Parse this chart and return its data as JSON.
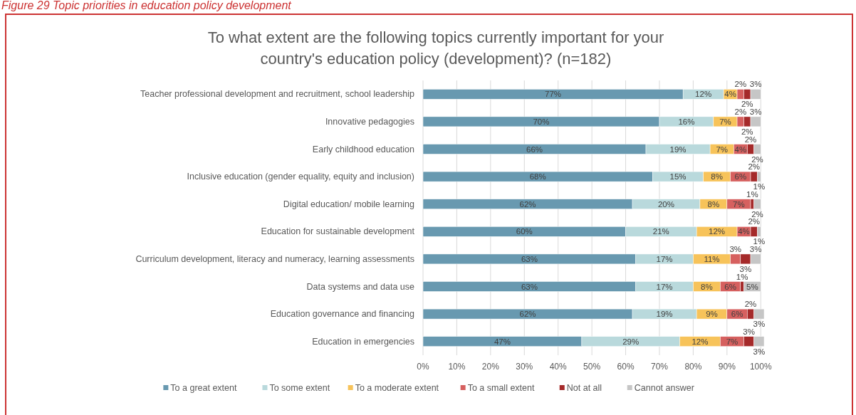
{
  "chart_data": {
    "type": "bar",
    "orientation": "horizontal",
    "stacked": true,
    "title": "To what extent are the following topics currently important for your country's education policy (development)? (n=182)",
    "annotations": [
      "Figure 29 Topic priorities in education policy development"
    ],
    "categories": [
      "Teacher professional development and recruitment, school leadership",
      "Innovative pedagogies",
      "Early childhood education",
      "Inclusive education (gender equality, equity and inclusion)",
      "Digital education/ mobile learning",
      "Education for sustainable development",
      "Curriculum development, literacy and numeracy, learning assessments",
      "Data systems and data use",
      "Education governance and financing",
      "Education in emergencies"
    ],
    "series": [
      {
        "name": "To a great extent",
        "color": "#6899b0",
        "values": [
          77,
          70,
          66,
          68,
          62,
          60,
          63,
          63,
          62,
          47
        ],
        "value_labels": [
          "77%",
          "70%",
          "66%",
          "68%",
          "62%",
          "60%",
          "63%",
          "63%",
          "62%",
          "47%"
        ]
      },
      {
        "name": "To some extent",
        "color": "#b9d9dc",
        "values": [
          12,
          16,
          19,
          15,
          20,
          21,
          17,
          17,
          19,
          29
        ],
        "value_labels": [
          "12%",
          "16%",
          "19%",
          "15%",
          "20%",
          "21%",
          "17%",
          "17%",
          "19%",
          "29%"
        ]
      },
      {
        "name": "To a moderate extent",
        "color": "#f7c35a",
        "values": [
          4,
          7,
          7,
          8,
          8,
          12,
          11,
          8,
          9,
          12
        ],
        "value_labels": [
          "4%",
          "7%",
          "7%",
          "8%",
          "8%",
          "12%",
          "11%",
          "8%",
          "9%",
          "12%"
        ]
      },
      {
        "name": "To a small extent",
        "color": "#d6605f",
        "values": [
          2,
          2,
          4,
          6,
          7,
          4,
          3,
          6,
          6,
          7
        ],
        "value_labels": [
          "2%",
          "2%",
          "4%",
          "6%",
          "7%",
          "4%",
          "3%",
          "6%",
          "6%",
          "7%"
        ]
      },
      {
        "name": "Not at all",
        "color": "#a52a2a",
        "values": [
          2,
          2,
          2,
          2,
          1,
          2,
          3,
          1,
          2,
          3
        ],
        "value_labels": [
          "2%",
          "2%",
          "2%",
          "2%",
          "1%",
          "2%",
          "3%",
          "1%",
          "2%",
          "3%"
        ]
      },
      {
        "name": "Cannot answer",
        "color": "#c6c6c6",
        "values": [
          3,
          3,
          2,
          1,
          2,
          1,
          3,
          5,
          3,
          3
        ],
        "value_labels": [
          "3%",
          "3%",
          "2%",
          "1%",
          "2%",
          "1%",
          "3%",
          "5%",
          "3%",
          "3%"
        ]
      }
    ],
    "xlim": [
      0,
      101
    ],
    "xticks": [
      {
        "value": 0,
        "label": "0%"
      },
      {
        "value": 10,
        "label": "10%"
      },
      {
        "value": 20,
        "label": "20%"
      },
      {
        "value": 30,
        "label": "30%"
      },
      {
        "value": 40,
        "label": "40%"
      },
      {
        "value": 50,
        "label": "50%"
      },
      {
        "value": 60,
        "label": "60%"
      },
      {
        "value": 70,
        "label": "70%"
      },
      {
        "value": 80,
        "label": "80%"
      },
      {
        "value": 90,
        "label": "90%"
      },
      {
        "value": 100,
        "label": "100%"
      }
    ],
    "grid": "x",
    "legend": "bottom"
  }
}
